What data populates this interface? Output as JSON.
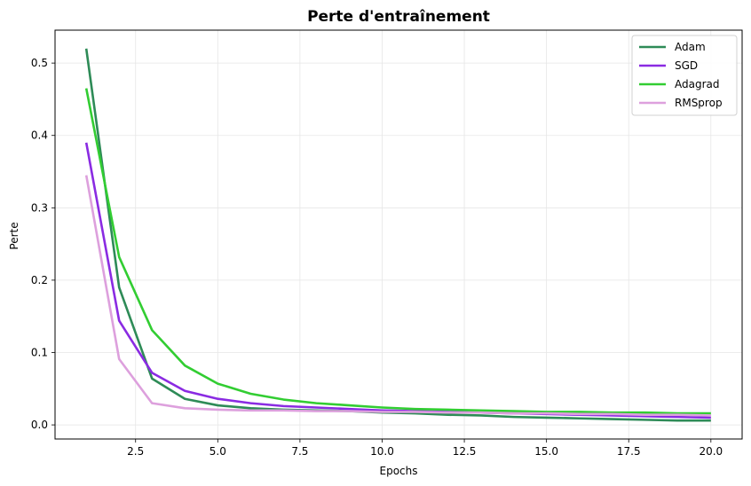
{
  "chart_data": {
    "type": "line",
    "title": "Perte d'entraînement",
    "xlabel": "Epochs",
    "ylabel": "Perte",
    "xlim": [
      0.05,
      20.95
    ],
    "ylim": [
      -0.0195,
      0.5455
    ],
    "xticks": [
      2.5,
      5.0,
      7.5,
      10.0,
      12.5,
      15.0,
      17.5,
      20.0
    ],
    "xtick_labels": [
      "2.5",
      "5.0",
      "7.5",
      "10.0",
      "12.5",
      "15.0",
      "17.5",
      "20.0"
    ],
    "yticks": [
      0.0,
      0.1,
      0.2,
      0.3,
      0.4,
      0.5
    ],
    "ytick_labels": [
      "0.0",
      "0.1",
      "0.2",
      "0.3",
      "0.4",
      "0.5"
    ],
    "grid": true,
    "legend_position": "top-right",
    "x": [
      1,
      2,
      3,
      4,
      5,
      6,
      7,
      8,
      9,
      10,
      11,
      12,
      13,
      14,
      15,
      16,
      17,
      18,
      19,
      20
    ],
    "series": [
      {
        "name": "Adam",
        "color": "#2e8b57",
        "values": [
          0.52,
          0.19,
          0.064,
          0.036,
          0.027,
          0.023,
          0.021,
          0.02,
          0.019,
          0.017,
          0.016,
          0.014,
          0.013,
          0.011,
          0.01,
          0.009,
          0.008,
          0.007,
          0.006,
          0.006
        ]
      },
      {
        "name": "SGD",
        "color": "#8a2be2",
        "values": [
          0.39,
          0.144,
          0.072,
          0.047,
          0.036,
          0.03,
          0.026,
          0.024,
          0.022,
          0.02,
          0.019,
          0.018,
          0.017,
          0.016,
          0.015,
          0.014,
          0.013,
          0.012,
          0.011,
          0.01
        ]
      },
      {
        "name": "Adagrad",
        "color": "#32cd32",
        "values": [
          0.465,
          0.232,
          0.131,
          0.082,
          0.057,
          0.043,
          0.035,
          0.03,
          0.027,
          0.024,
          0.022,
          0.021,
          0.02,
          0.019,
          0.018,
          0.018,
          0.017,
          0.017,
          0.016,
          0.016
        ]
      },
      {
        "name": "RMSprop",
        "color": "#dda0dd",
        "values": [
          0.345,
          0.091,
          0.03,
          0.023,
          0.021,
          0.02,
          0.02,
          0.019,
          0.019,
          0.018,
          0.018,
          0.017,
          0.017,
          0.016,
          0.016,
          0.015,
          0.015,
          0.014,
          0.014,
          0.013
        ]
      }
    ]
  }
}
